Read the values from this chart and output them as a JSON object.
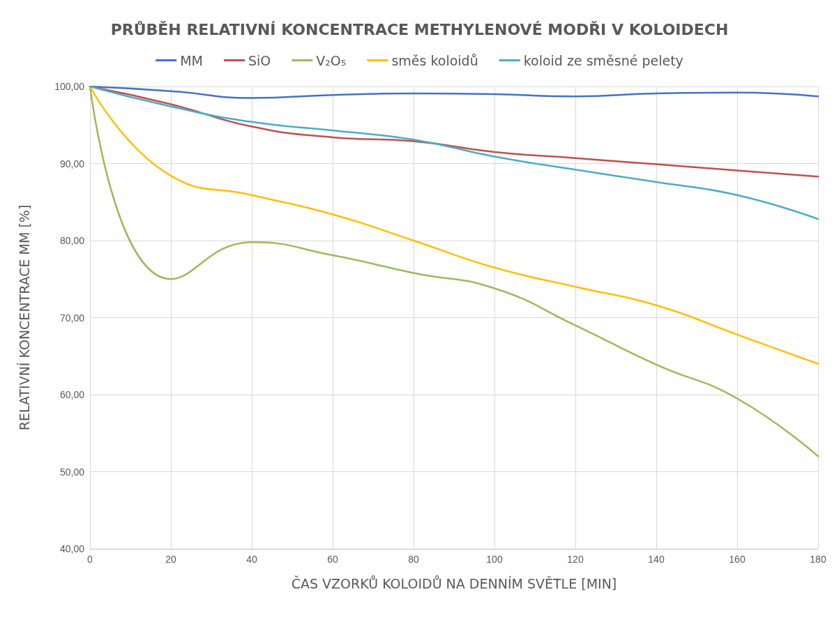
{
  "chart_data": {
    "type": "line",
    "title": "PRŮBĚH RELATIVNÍ KONCENTRACE METHYLENOVÉ MODŘI V KOLOIDECH",
    "xlabel": "ČAS VZORKŮ KOLOIDŮ NA DENNÍM SVĚTLE [MIN]",
    "ylabel": "RELATIVNÍ KONCENTRACE MM [%]",
    "x": [
      0,
      20,
      40,
      60,
      80,
      100,
      120,
      140,
      160,
      180
    ],
    "series": [
      {
        "name": "MM",
        "color": "#4472c4",
        "values": [
          100,
          99.4,
          98.5,
          98.9,
          99.1,
          99.0,
          98.7,
          99.1,
          99.2,
          98.7
        ]
      },
      {
        "name": "SiO",
        "color": "#c0504d",
        "values": [
          100,
          97.7,
          94.8,
          93.4,
          92.9,
          91.5,
          90.7,
          89.9,
          89.1,
          88.3
        ]
      },
      {
        "name": "V₂O₅",
        "color": "#9bbb59",
        "values": [
          100,
          75.0,
          79.8,
          78.1,
          75.8,
          73.8,
          69.0,
          63.9,
          59.5,
          52.0
        ]
      },
      {
        "name": "směs koloidů",
        "color": "#ffc000",
        "values": [
          100,
          88.4,
          85.9,
          83.4,
          80.0,
          76.5,
          74.0,
          71.6,
          67.8,
          64.0
        ]
      },
      {
        "name": "koloid ze směsné pelety",
        "color": "#4bacc6",
        "values": [
          100,
          97.4,
          95.4,
          94.3,
          93.1,
          90.9,
          89.2,
          87.6,
          85.9,
          82.8
        ]
      }
    ],
    "xlim": [
      0,
      180
    ],
    "xticks": [
      0,
      20,
      40,
      60,
      80,
      100,
      120,
      140,
      160,
      180
    ],
    "ylim": [
      40,
      100
    ],
    "yticks": [
      {
        "value": 40,
        "label": "40,00"
      },
      {
        "value": 50,
        "label": "50,00"
      },
      {
        "value": 60,
        "label": "60,00"
      },
      {
        "value": 70,
        "label": "70,00"
      },
      {
        "value": 80,
        "label": "80,00"
      },
      {
        "value": 90,
        "label": "90,00"
      },
      {
        "value": 100,
        "label": "100,00"
      }
    ],
    "grid": true,
    "legend": "top",
    "marker": "none",
    "line_style": "solid"
  }
}
